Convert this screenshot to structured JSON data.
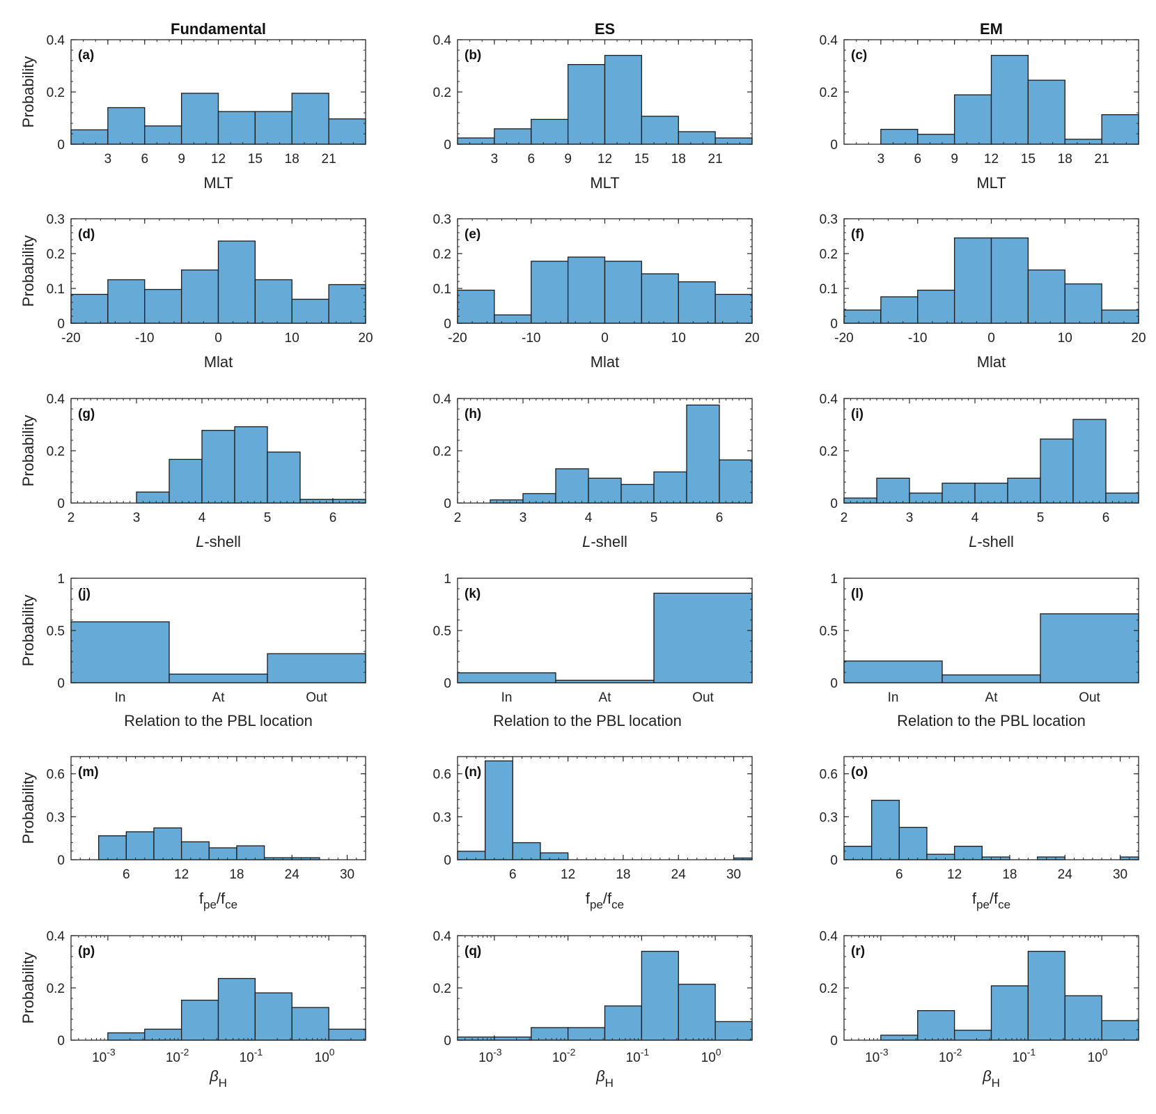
{
  "column_titles": [
    "Fundamental",
    "ES",
    "EM"
  ],
  "rows": [
    {
      "key": "mlt",
      "ylabel": "Probability",
      "xlabel": "MLT",
      "ylim": [
        0,
        0.4
      ],
      "yticks": [
        {
          "v": 0,
          "t": "0"
        },
        {
          "v": 0.2,
          "t": "0.2"
        },
        {
          "v": 0.4,
          "t": "0.4"
        }
      ],
      "xlim": [
        0,
        24
      ],
      "xticks": [
        {
          "v": 3,
          "t": "3"
        },
        {
          "v": 6,
          "t": "6"
        },
        {
          "v": 9,
          "t": "9"
        },
        {
          "v": 12,
          "t": "12"
        },
        {
          "v": 15,
          "t": "15"
        },
        {
          "v": 18,
          "t": "18"
        },
        {
          "v": 21,
          "t": "21"
        }
      ],
      "edges": [
        0,
        3,
        6,
        9,
        12,
        15,
        18,
        21,
        24
      ]
    },
    {
      "key": "mlat",
      "ylabel": "Probability",
      "xlabel": "Mlat",
      "ylim": [
        0,
        0.3
      ],
      "yticks": [
        {
          "v": 0,
          "t": "0"
        },
        {
          "v": 0.1,
          "t": "0.1"
        },
        {
          "v": 0.2,
          "t": "0.2"
        },
        {
          "v": 0.3,
          "t": "0.3"
        }
      ],
      "xlim": [
        -20,
        20
      ],
      "xticks": [
        {
          "v": -20,
          "t": "-20"
        },
        {
          "v": -10,
          "t": "-10"
        },
        {
          "v": 0,
          "t": "0"
        },
        {
          "v": 10,
          "t": "10"
        },
        {
          "v": 20,
          "t": "20"
        }
      ],
      "edges": [
        -20,
        -15,
        -10,
        -5,
        0,
        5,
        10,
        15,
        20
      ]
    },
    {
      "key": "lshell",
      "ylabel": "Probability",
      "xlabel_italic": "L",
      "xlabel_rest": "-shell",
      "ylim": [
        0,
        0.4
      ],
      "yticks": [
        {
          "v": 0,
          "t": "0"
        },
        {
          "v": 0.2,
          "t": "0.2"
        },
        {
          "v": 0.4,
          "t": "0.4"
        }
      ],
      "xlim": [
        2,
        6.5
      ],
      "xticks": [
        {
          "v": 2,
          "t": "2"
        },
        {
          "v": 3,
          "t": "3"
        },
        {
          "v": 4,
          "t": "4"
        },
        {
          "v": 5,
          "t": "5"
        },
        {
          "v": 6,
          "t": "6"
        }
      ],
      "edges": [
        2,
        2.5,
        3,
        3.5,
        4,
        4.5,
        5,
        5.5,
        6,
        6.5
      ]
    },
    {
      "key": "pbl",
      "ylabel": "Probability",
      "xlabel": "Relation to the PBL location",
      "ylim": [
        0,
        1
      ],
      "yticks": [
        {
          "v": 0,
          "t": "0"
        },
        {
          "v": 0.5,
          "t": "0.5"
        },
        {
          "v": 1,
          "t": "1"
        }
      ],
      "xlim": [
        0,
        3
      ],
      "xticks": [
        {
          "v": 0.5,
          "t": "In"
        },
        {
          "v": 1.5,
          "t": "At"
        },
        {
          "v": 2.5,
          "t": "Out"
        }
      ],
      "edges": [
        0,
        1,
        2,
        3
      ]
    },
    {
      "key": "fpe",
      "ylabel": "Probability",
      "xlabel_base": "f",
      "xlabel_sub1": "pe",
      "xlabel_mid": "/f",
      "xlabel_sub2": "ce",
      "ylim": [
        0,
        0.72
      ],
      "yticks": [
        {
          "v": 0,
          "t": "0"
        },
        {
          "v": 0.3,
          "t": "0.3"
        },
        {
          "v": 0.6,
          "t": "0.6"
        }
      ],
      "xlim": [
        0,
        32
      ],
      "xticks": [
        {
          "v": 6,
          "t": "6"
        },
        {
          "v": 12,
          "t": "12"
        },
        {
          "v": 18,
          "t": "18"
        },
        {
          "v": 24,
          "t": "24"
        },
        {
          "v": 30,
          "t": "30"
        }
      ],
      "edges": [
        0,
        3,
        6,
        9,
        12,
        15,
        18,
        21,
        24,
        27,
        30,
        32
      ]
    },
    {
      "key": "beta",
      "ylabel": "Probability",
      "xlabel_base": "β",
      "xlabel_sub": "H",
      "ylim": [
        0,
        0.4
      ],
      "yticks": [
        {
          "v": 0,
          "t": "0"
        },
        {
          "v": 0.2,
          "t": "0.2"
        },
        {
          "v": 0.4,
          "t": "0.4"
        }
      ],
      "xlim": [
        -3.5,
        0.5
      ],
      "xticks": [
        {
          "v": -3,
          "base": "10",
          "exp": "-3"
        },
        {
          "v": -2,
          "base": "10",
          "exp": "-2"
        },
        {
          "v": -1,
          "base": "10",
          "exp": "-1"
        },
        {
          "v": 0,
          "base": "10",
          "exp": "0"
        }
      ],
      "edges": [
        -3.5,
        -3,
        -2.5,
        -2,
        -1.5,
        -1,
        -0.5,
        0,
        0.5
      ]
    }
  ],
  "chart_data": [
    {
      "panel": "(a)",
      "type": "bar",
      "title": "Fundamental",
      "xlabel": "MLT",
      "ylabel": "Probability",
      "values": [
        0.055,
        0.14,
        0.07,
        0.195,
        0.125,
        0.125,
        0.195,
        0.097
      ]
    },
    {
      "panel": "(b)",
      "type": "bar",
      "title": "ES",
      "xlabel": "MLT",
      "ylabel": "Probability",
      "values": [
        0.024,
        0.059,
        0.095,
        0.305,
        0.34,
        0.107,
        0.048,
        0.024
      ]
    },
    {
      "panel": "(c)",
      "type": "bar",
      "title": "EM",
      "xlabel": "MLT",
      "ylabel": "Probability",
      "values": [
        0.0,
        0.057,
        0.038,
        0.189,
        0.34,
        0.245,
        0.019,
        0.113
      ]
    },
    {
      "panel": "(d)",
      "type": "bar",
      "xlabel": "Mlat",
      "ylabel": "Probability",
      "values": [
        0.083,
        0.125,
        0.097,
        0.153,
        0.236,
        0.125,
        0.069,
        0.111
      ]
    },
    {
      "panel": "(e)",
      "type": "bar",
      "xlabel": "Mlat",
      "ylabel": "Probability",
      "values": [
        0.095,
        0.024,
        0.178,
        0.19,
        0.178,
        0.142,
        0.119,
        0.083
      ]
    },
    {
      "panel": "(f)",
      "type": "bar",
      "xlabel": "Mlat",
      "ylabel": "Probability",
      "values": [
        0.038,
        0.076,
        0.095,
        0.245,
        0.245,
        0.153,
        0.113,
        0.038
      ]
    },
    {
      "panel": "(g)",
      "type": "bar",
      "xlabel": "L-shell",
      "ylabel": "Probability",
      "values": [
        0.0,
        0.0,
        0.042,
        0.167,
        0.278,
        0.292,
        0.195,
        0.014,
        0.014
      ]
    },
    {
      "panel": "(h)",
      "type": "bar",
      "xlabel": "L-shell",
      "ylabel": "Probability",
      "values": [
        0.0,
        0.012,
        0.036,
        0.131,
        0.095,
        0.071,
        0.119,
        0.375,
        0.165
      ]
    },
    {
      "panel": "(i)",
      "type": "bar",
      "xlabel": "L-shell",
      "ylabel": "Probability",
      "values": [
        0.019,
        0.095,
        0.038,
        0.076,
        0.076,
        0.095,
        0.245,
        0.32,
        0.038
      ]
    },
    {
      "panel": "(j)",
      "type": "bar",
      "xlabel": "Relation to the PBL location",
      "ylabel": "Probability",
      "categories": [
        "In",
        "At",
        "Out"
      ],
      "values": [
        0.583,
        0.083,
        0.278
      ]
    },
    {
      "panel": "(k)",
      "type": "bar",
      "xlabel": "Relation to the PBL location",
      "ylabel": "Probability",
      "categories": [
        "In",
        "At",
        "Out"
      ],
      "values": [
        0.095,
        0.024,
        0.857
      ]
    },
    {
      "panel": "(l)",
      "type": "bar",
      "xlabel": "Relation to the PBL location",
      "ylabel": "Probability",
      "categories": [
        "In",
        "At",
        "Out"
      ],
      "values": [
        0.208,
        0.075,
        0.66
      ]
    },
    {
      "panel": "(m)",
      "type": "bar",
      "xlabel": "fpe/fce",
      "ylabel": "Probability",
      "values": [
        0.0,
        0.167,
        0.195,
        0.222,
        0.125,
        0.083,
        0.097,
        0.014,
        0.014,
        0.0,
        0.0
      ]
    },
    {
      "panel": "(n)",
      "type": "bar",
      "xlabel": "fpe/fce",
      "ylabel": "Probability",
      "values": [
        0.059,
        0.69,
        0.119,
        0.048,
        0.0,
        0.0,
        0.0,
        0.0,
        0.0,
        0.0,
        0.012
      ]
    },
    {
      "panel": "(o)",
      "type": "bar",
      "xlabel": "fpe/fce",
      "ylabel": "Probability",
      "values": [
        0.094,
        0.415,
        0.226,
        0.038,
        0.094,
        0.019,
        0.0,
        0.019,
        0.0,
        0.0,
        0.019
      ]
    },
    {
      "panel": "(p)",
      "type": "bar",
      "xlabel": "βH",
      "ylabel": "Probability",
      "values": [
        0.0,
        0.028,
        0.042,
        0.153,
        0.236,
        0.181,
        0.125,
        0.042
      ]
    },
    {
      "panel": "(q)",
      "type": "bar",
      "xlabel": "βH",
      "ylabel": "Probability",
      "values": [
        0.012,
        0.012,
        0.048,
        0.048,
        0.131,
        0.34,
        0.214,
        0.071
      ]
    },
    {
      "panel": "(r)",
      "type": "bar",
      "xlabel": "βH",
      "ylabel": "Probability",
      "values": [
        0.0,
        0.019,
        0.113,
        0.038,
        0.208,
        0.34,
        0.17,
        0.075
      ]
    }
  ]
}
